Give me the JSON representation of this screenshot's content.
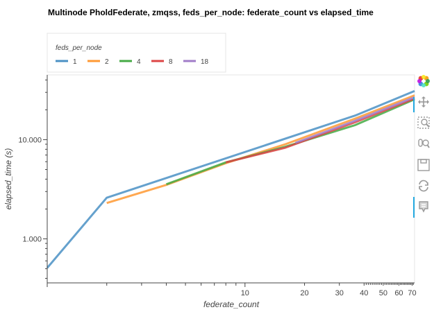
{
  "chart_data": {
    "type": "line",
    "title": "Multinode PholdFederate, zmqss, feds_per_node: federate_count vs elapsed_time",
    "xlabel": "federate_count",
    "ylabel": "elapsed_time (s)",
    "x_scale": "log",
    "y_scale": "log",
    "xlim": [
      1,
      72
    ],
    "ylim": [
      0.36,
      45
    ],
    "x_tick_labels": [
      "10",
      "20",
      "30",
      "40",
      "50",
      "60",
      "70"
    ],
    "y_tick_labels": [
      "1.000",
      "10.000"
    ],
    "grid": false,
    "legend": {
      "title": "feds_per_node",
      "placement": "top-left"
    },
    "series": [
      {
        "name": "1",
        "color": "#4a90c4",
        "x": [
          1,
          2,
          36,
          72
        ],
        "y": [
          0.51,
          2.6,
          17.5,
          31
        ]
      },
      {
        "name": "2",
        "color": "#ff9933",
        "x": [
          2,
          4,
          8,
          16,
          36,
          72
        ],
        "y": [
          2.3,
          3.5,
          5.8,
          9.0,
          16.3,
          28
        ]
      },
      {
        "name": "4",
        "color": "#44aa44",
        "x": [
          4,
          8,
          16,
          36,
          72
        ],
        "y": [
          3.55,
          5.9,
          8.5,
          14.0,
          25.5
        ]
      },
      {
        "name": "8",
        "color": "#dd4444",
        "x": [
          8,
          16,
          36,
          72
        ],
        "y": [
          5.9,
          8.3,
          15.0,
          26.0
        ]
      },
      {
        "name": "18",
        "color": "#a07cc8",
        "x": [
          18,
          36,
          72
        ],
        "y": [
          9.3,
          15.5,
          26.8
        ]
      }
    ]
  },
  "toolbar": {
    "logo_icon": "bokeh-logo-icon",
    "items": [
      "pan-icon",
      "box-zoom-icon",
      "wheel-zoom-icon",
      "save-icon",
      "reset-icon",
      "hover-icon"
    ]
  }
}
